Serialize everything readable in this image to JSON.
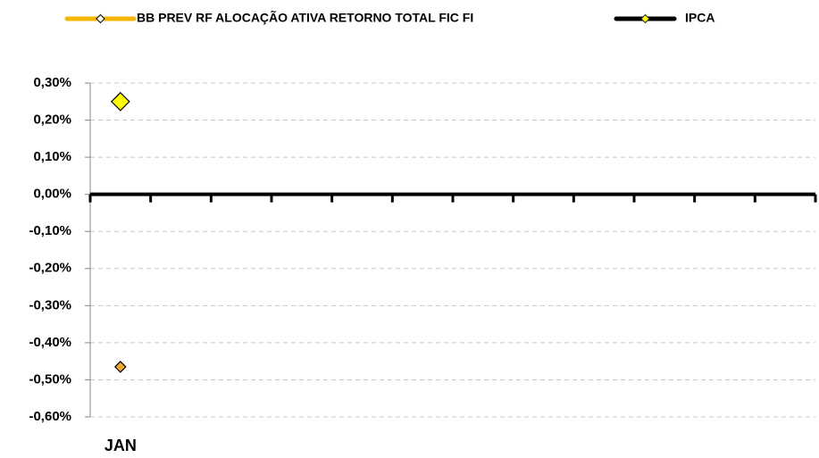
{
  "chart_data": {
    "type": "line",
    "categories": [
      "JAN",
      null,
      null,
      null,
      null,
      null,
      null,
      null,
      null,
      null,
      null,
      null
    ],
    "series": [
      {
        "name": "BB PREV RF ALOCAÇÃO ATIVA RETORNO TOTAL FIC FI",
        "color": "#f5b400",
        "marker_color": "#f0a830",
        "values": [
          -0.465,
          null,
          null,
          null,
          null,
          null,
          null,
          null,
          null,
          null,
          null,
          null
        ]
      },
      {
        "name": "IPCA",
        "color": "#000000",
        "marker_color": "#ffff00",
        "values": [
          0.25,
          null,
          null,
          null,
          null,
          null,
          null,
          null,
          null,
          null,
          null,
          null
        ]
      }
    ],
    "ylim": [
      -0.6,
      0.3
    ],
    "yticks": [
      {
        "value": -0.6,
        "label": "-0,60%"
      },
      {
        "value": -0.5,
        "label": "-0,50%"
      },
      {
        "value": -0.4,
        "label": "-0,40%"
      },
      {
        "value": -0.3,
        "label": "-0,30%"
      },
      {
        "value": -0.2,
        "label": "-0,20%"
      },
      {
        "value": -0.1,
        "label": "-0,10%"
      },
      {
        "value": 0,
        "label": "0,00%"
      },
      {
        "value": 0.1,
        "label": "0,10%"
      },
      {
        "value": 0.2,
        "label": "0,20%"
      },
      {
        "value": 0.3,
        "label": "0,30%"
      }
    ],
    "grid": true,
    "legend": "top"
  }
}
